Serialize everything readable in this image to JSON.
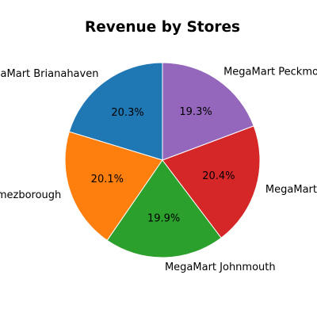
{
  "chart_data": {
    "type": "pie",
    "title": "Revenue by Stores",
    "categories": [
      "MegaMart Brianahaven",
      "MegaMart Gomezborough",
      "MegaMart Johnmouth",
      "MegaMart Martinezberg",
      "MegaMart Peckmouth"
    ],
    "values": [
      20.3,
      20.1,
      19.9,
      20.4,
      19.3
    ],
    "percent_labels": [
      "20.3%",
      "20.1%",
      "19.9%",
      "20.4%",
      "19.3%"
    ],
    "colors": [
      "#1f77b4",
      "#ff7f0e",
      "#2ca02c",
      "#d62728",
      "#9467bd"
    ],
    "start_angle_deg": 90,
    "direction": "counterclockwise",
    "legend": "none"
  }
}
